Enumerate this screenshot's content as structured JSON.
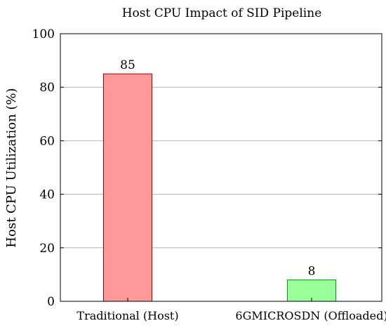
{
  "chart_data": {
    "type": "bar",
    "title": "Host CPU Impact of SID Pipeline",
    "xlabel": "",
    "ylabel": "Host CPU Utilization (%)",
    "categories": [
      "Traditional (Host)",
      "6GMICROSDN (Offloaded)"
    ],
    "values": [
      85,
      8
    ],
    "data_labels": [
      "85",
      "8"
    ],
    "ylim": [
      0,
      100
    ],
    "yticks": [
      0,
      20,
      40,
      60,
      80,
      100
    ],
    "ytick_labels": [
      "0",
      "20",
      "40",
      "60",
      "80",
      "100"
    ],
    "grid": true,
    "colors": {
      "bar_fills": [
        "#ff9999",
        "#99ff99"
      ],
      "bar_strokes": [
        "#a00000",
        "#00a000"
      ],
      "grid": "#b3b3b3"
    }
  }
}
